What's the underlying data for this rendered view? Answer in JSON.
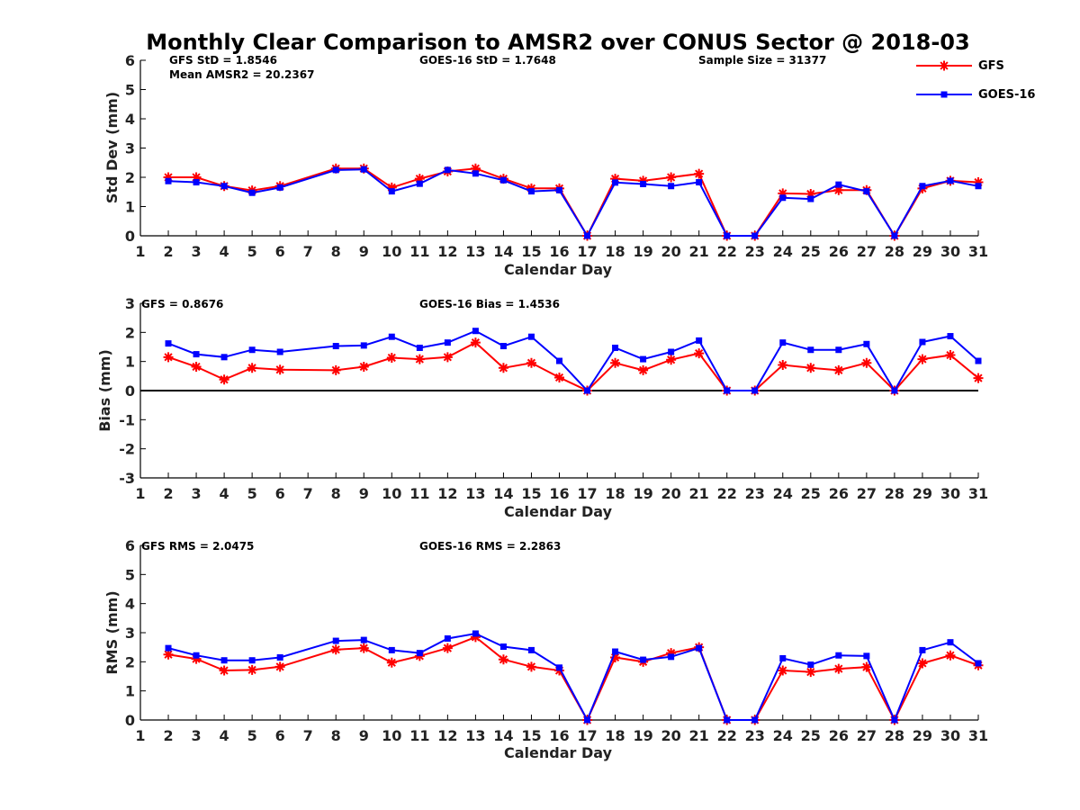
{
  "figure": {
    "title": "Monthly Clear Comparison to AMSR2 over CONUS Sector @ 2018-03"
  },
  "legend": {
    "placement": "top-right",
    "entries": [
      {
        "name": "GFS",
        "color": "#ff0000",
        "marker": "asterisk"
      },
      {
        "name": "GOES-16",
        "color": "#0000ff",
        "marker": "square"
      }
    ]
  },
  "chart_data": [
    {
      "type": "line",
      "xlabel": "Calendar Day",
      "ylabel": "Std Dev (mm)",
      "xlim": [
        1,
        31
      ],
      "ylim": [
        0,
        6
      ],
      "xticks": [
        1,
        2,
        3,
        4,
        5,
        6,
        7,
        8,
        9,
        10,
        11,
        12,
        13,
        14,
        15,
        16,
        17,
        18,
        19,
        20,
        21,
        22,
        23,
        24,
        25,
        26,
        27,
        28,
        29,
        30,
        31
      ],
      "yticks": [
        0,
        1,
        2,
        3,
        4,
        5,
        6
      ],
      "x": [
        2,
        3,
        4,
        5,
        6,
        8,
        9,
        10,
        11,
        12,
        13,
        14,
        15,
        16,
        17,
        18,
        19,
        20,
        21,
        22,
        23,
        24,
        25,
        26,
        27,
        28,
        29,
        30,
        31
      ],
      "annotations": [
        "GFS StD = 1.8546",
        "Mean AMSR2 = 20.2367",
        "GOES-16 StD = 1.7648",
        "Sample Size = 31377"
      ],
      "series": [
        {
          "name": "GFS",
          "values": [
            2.0,
            2.0,
            1.7,
            1.55,
            1.7,
            2.3,
            2.3,
            1.65,
            1.95,
            2.2,
            2.3,
            1.95,
            1.62,
            1.62,
            0,
            1.95,
            1.88,
            2.0,
            2.12,
            0,
            0,
            1.45,
            1.43,
            1.56,
            1.56,
            0,
            1.62,
            1.88,
            1.83
          ]
        },
        {
          "name": "GOES-16",
          "values": [
            1.87,
            1.83,
            1.7,
            1.47,
            1.65,
            2.25,
            2.27,
            1.52,
            1.78,
            2.25,
            2.13,
            1.9,
            1.52,
            1.56,
            0,
            1.82,
            1.77,
            1.7,
            1.83,
            0,
            0,
            1.3,
            1.26,
            1.75,
            1.52,
            0,
            1.7,
            1.88,
            1.7
          ]
        }
      ]
    },
    {
      "type": "line",
      "xlabel": "Calendar Day",
      "ylabel": "Bias (mm)",
      "xlim": [
        1,
        31
      ],
      "ylim": [
        -3,
        3
      ],
      "xticks": [
        1,
        2,
        3,
        4,
        5,
        6,
        7,
        8,
        9,
        10,
        11,
        12,
        13,
        14,
        15,
        16,
        17,
        18,
        19,
        20,
        21,
        22,
        23,
        24,
        25,
        26,
        27,
        28,
        29,
        30,
        31
      ],
      "yticks": [
        -3,
        -2,
        -1,
        0,
        1,
        2,
        3
      ],
      "x": [
        2,
        3,
        4,
        5,
        6,
        8,
        9,
        10,
        11,
        12,
        13,
        14,
        15,
        16,
        17,
        18,
        19,
        20,
        21,
        22,
        23,
        24,
        25,
        26,
        27,
        28,
        29,
        30,
        31
      ],
      "annotations": [
        "GFS = 0.8676",
        "GOES-16 Bias = 1.4536"
      ],
      "zero_line": true,
      "series": [
        {
          "name": "GFS",
          "values": [
            1.15,
            0.82,
            0.38,
            0.78,
            0.72,
            0.7,
            0.82,
            1.13,
            1.08,
            1.15,
            1.65,
            0.78,
            0.95,
            0.45,
            0,
            0.95,
            0.7,
            1.06,
            1.28,
            0,
            0,
            0.88,
            0.78,
            0.7,
            0.95,
            0,
            1.08,
            1.22,
            0.43
          ]
        },
        {
          "name": "GOES-16",
          "values": [
            1.62,
            1.25,
            1.15,
            1.4,
            1.33,
            1.53,
            1.55,
            1.85,
            1.47,
            1.65,
            2.05,
            1.53,
            1.85,
            1.02,
            0,
            1.47,
            1.08,
            1.33,
            1.72,
            0,
            0,
            1.65,
            1.4,
            1.4,
            1.6,
            0,
            1.67,
            1.87,
            1.02
          ]
        }
      ]
    },
    {
      "type": "line",
      "xlabel": "Calendar Day",
      "ylabel": "RMS (mm)",
      "xlim": [
        1,
        31
      ],
      "ylim": [
        0,
        6
      ],
      "xticks": [
        1,
        2,
        3,
        4,
        5,
        6,
        7,
        8,
        9,
        10,
        11,
        12,
        13,
        14,
        15,
        16,
        17,
        18,
        19,
        20,
        21,
        22,
        23,
        24,
        25,
        26,
        27,
        28,
        29,
        30,
        31
      ],
      "yticks": [
        0,
        1,
        2,
        3,
        4,
        5,
        6
      ],
      "x": [
        2,
        3,
        4,
        5,
        6,
        8,
        9,
        10,
        11,
        12,
        13,
        14,
        15,
        16,
        17,
        18,
        19,
        20,
        21,
        22,
        23,
        24,
        25,
        26,
        27,
        28,
        29,
        30,
        31
      ],
      "annotations": [
        "GFS RMS = 2.0475",
        "GOES-16 RMS = 2.2863"
      ],
      "series": [
        {
          "name": "GFS",
          "values": [
            2.25,
            2.1,
            1.7,
            1.72,
            1.83,
            2.42,
            2.47,
            1.97,
            2.2,
            2.47,
            2.85,
            2.08,
            1.83,
            1.7,
            0,
            2.15,
            2.0,
            2.3,
            2.5,
            0,
            0,
            1.7,
            1.65,
            1.76,
            1.82,
            0,
            1.95,
            2.22,
            1.88
          ]
        },
        {
          "name": "GOES-16",
          "values": [
            2.47,
            2.22,
            2.05,
            2.05,
            2.15,
            2.72,
            2.75,
            2.4,
            2.3,
            2.8,
            2.97,
            2.52,
            2.4,
            1.8,
            0,
            2.35,
            2.07,
            2.17,
            2.47,
            0,
            0,
            2.12,
            1.9,
            2.22,
            2.2,
            0,
            2.4,
            2.67,
            1.95
          ]
        }
      ]
    }
  ]
}
